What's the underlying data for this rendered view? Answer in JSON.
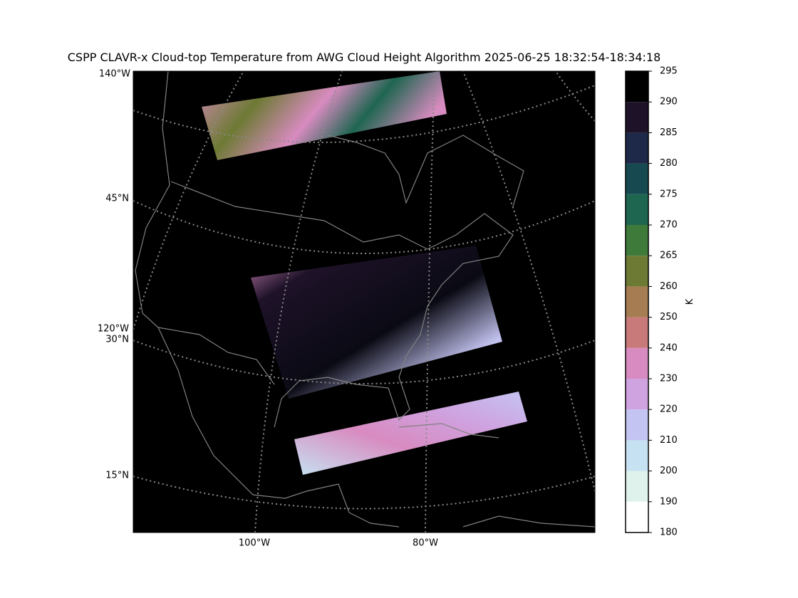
{
  "title": "CSPP CLAVR-x Cloud-top Temperature from AWG Cloud Height Algorithm 2025-06-25 18:32:54-18:34:18",
  "map": {
    "labels": [
      "140°W",
      "45°N",
      "120°W",
      "30°N",
      "15°N",
      "100°W",
      "80°W"
    ]
  },
  "colorbar": {
    "label": "K",
    "boundaries": [
      180,
      190,
      200,
      210,
      220,
      230,
      240,
      250,
      260,
      265,
      270,
      275,
      280,
      285,
      290,
      295
    ],
    "colors": [
      "#ffffff",
      "#dff3ec",
      "#c6e2f2",
      "#c4c4f2",
      "#cfa2e0",
      "#d88bc0",
      "#c87a7a",
      "#a67c52",
      "#6d7a34",
      "#3e7a3a",
      "#1e6650",
      "#174a50",
      "#1e2848",
      "#1e1228",
      "#000000"
    ]
  }
}
